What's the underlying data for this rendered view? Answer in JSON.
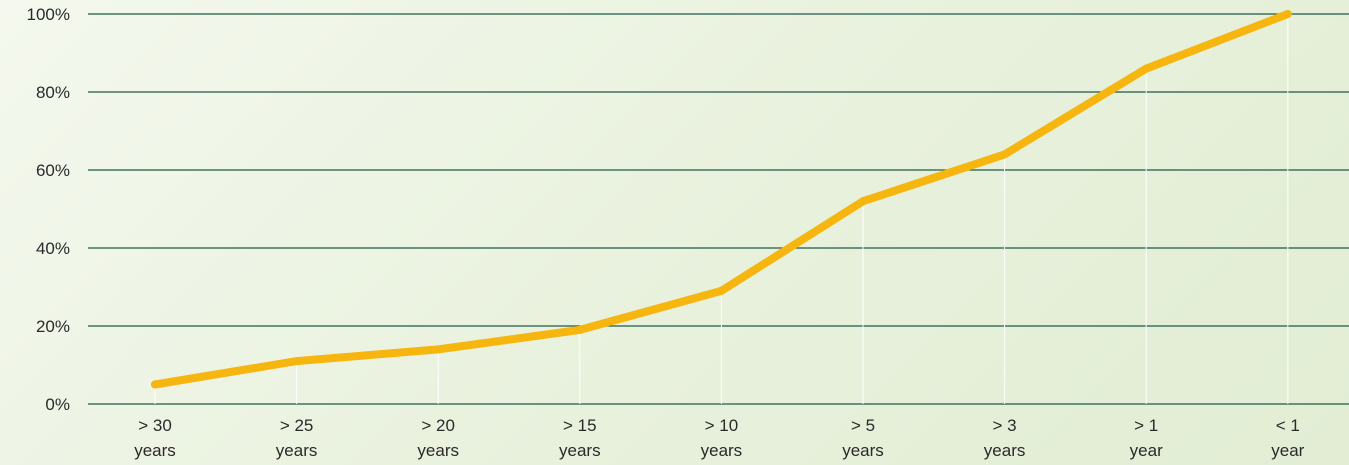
{
  "chart_data": {
    "type": "line",
    "title": "",
    "xlabel": "",
    "ylabel": "",
    "categories": [
      [
        "> 30",
        "years"
      ],
      [
        "> 25",
        "years"
      ],
      [
        "> 20",
        "years"
      ],
      [
        "> 15",
        "years"
      ],
      [
        "> 10",
        "years"
      ],
      [
        "> 5",
        "years"
      ],
      [
        "> 3",
        "years"
      ],
      [
        "> 1",
        "year"
      ],
      [
        "< 1",
        "year"
      ]
    ],
    "series": [
      {
        "values": [
          5,
          11,
          14,
          19,
          29,
          52,
          64,
          86,
          100
        ],
        "color": "#f6b60f"
      }
    ],
    "ylim": [
      0,
      100
    ],
    "yticks": [
      0,
      20,
      40,
      60,
      80,
      100
    ],
    "ytick_suffix": "%",
    "grid": true,
    "colors": {
      "gridline": "#1f5a45",
      "vertical_guide": "#ffffff",
      "line": "#f6b60f"
    }
  }
}
